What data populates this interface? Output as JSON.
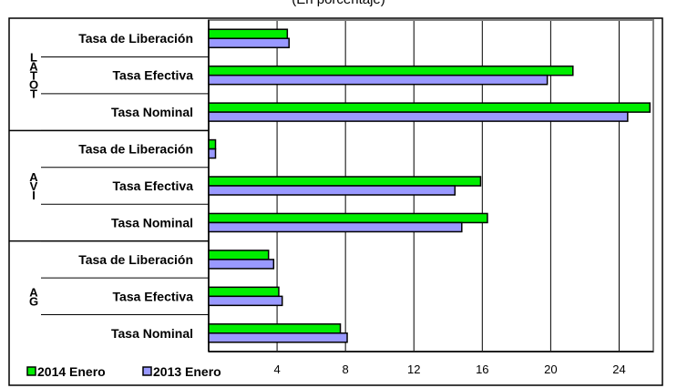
{
  "chart_data": {
    "type": "bar",
    "orientation": "horizontal",
    "subtitle": "(En porcentaje)",
    "groups": [
      {
        "label": "LATOT",
        "categories": [
          "Tasa de Liberación",
          "Tasa Efectiva",
          "Tasa Nominal"
        ]
      },
      {
        "label": "AVI",
        "categories": [
          "Tasa de Liberación",
          "Tasa Efectiva",
          "Tasa Nominal"
        ]
      },
      {
        "label": "AG",
        "categories": [
          "Tasa de Liberación",
          "Tasa Efectiva",
          "Tasa Nominal"
        ]
      }
    ],
    "series": [
      {
        "name": "2014 Enero",
        "color": "#00ee00",
        "values": [
          4.6,
          21.3,
          25.8,
          0.4,
          15.9,
          16.3,
          3.5,
          4.1,
          7.7
        ]
      },
      {
        "name": "2013 Enero",
        "color": "#9999ff",
        "values": [
          4.7,
          19.8,
          24.5,
          0.4,
          14.4,
          14.8,
          3.8,
          4.3,
          8.1
        ]
      }
    ],
    "xlim": [
      0,
      26
    ],
    "xticks": [
      4,
      8,
      12,
      16,
      20,
      24
    ],
    "grid": true,
    "legend": "bottom-left"
  }
}
